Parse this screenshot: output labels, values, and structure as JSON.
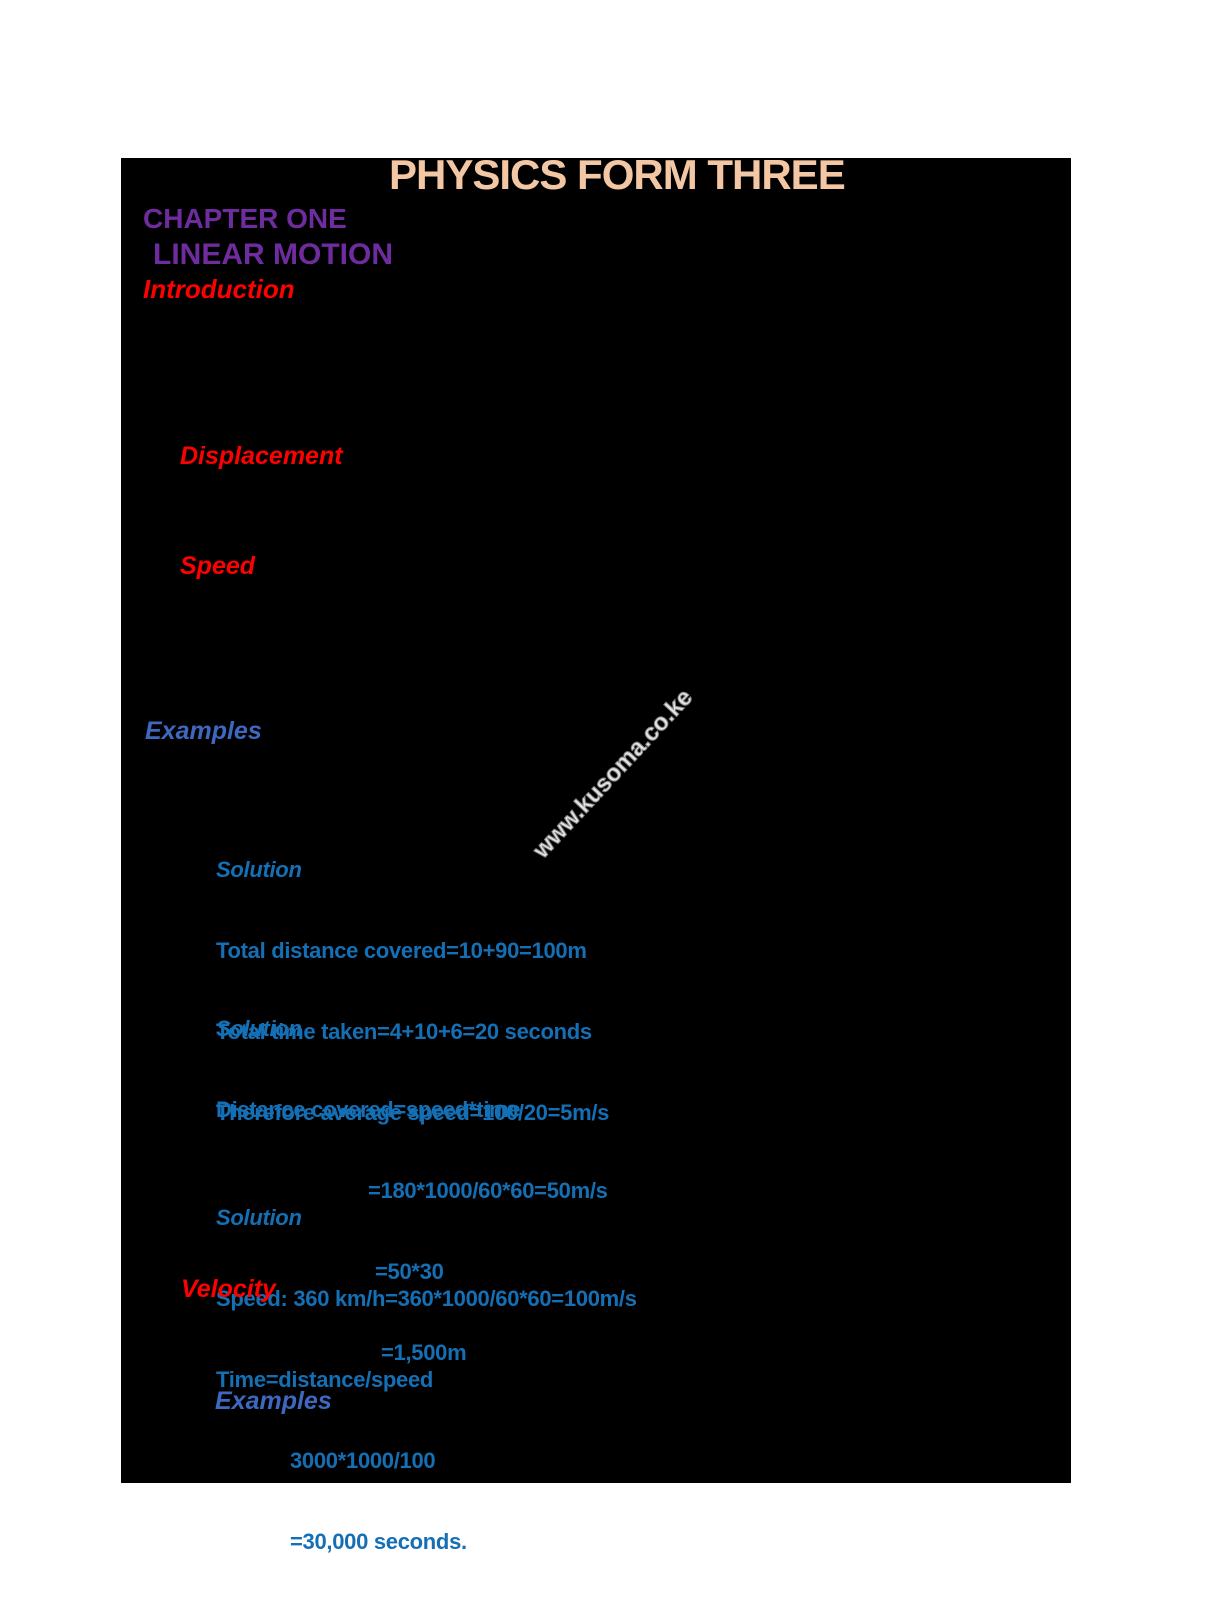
{
  "document": {
    "title": "PHYSICS FORM THREE",
    "headings": {
      "chapter": "CHAPTER ONE",
      "chapter_title": "LINEAR MOTION",
      "introduction": "Introduction",
      "displacement": "Displacement",
      "speed": "Speed",
      "examples_1": "Examples",
      "velocity": "Velocity",
      "examples_2": "Examples"
    },
    "solutions": [
      {
        "label": "Solution",
        "lines": [
          "Total distance covered=10+90=100m",
          "Total time taken=4+10+6=20 seconds",
          "Therefore average speed=100/20=5m/s"
        ]
      },
      {
        "label": "Solution",
        "lines": [
          "Distance covered=speed*time",
          "=180*1000/60*60=50m/s",
          "=50*30",
          "=1,500m"
        ]
      },
      {
        "label": "Solution",
        "lines": [
          "Speed: 360 km/h=360*1000/60*60=100m/s",
          "Time=distance/speed",
          "3000*1000/100",
          "=30,000 seconds."
        ]
      }
    ],
    "watermark": "www.kusoma.co.ke",
    "colors": {
      "title": "#F4C7A4",
      "chapter_purple": "#6E2C9E",
      "section_red": "#FF0000",
      "examples_blue": "#3E68C0",
      "solution_blue": "#146FB5",
      "page_background": "#000000",
      "canvas_background": "#FFFFFF"
    }
  }
}
